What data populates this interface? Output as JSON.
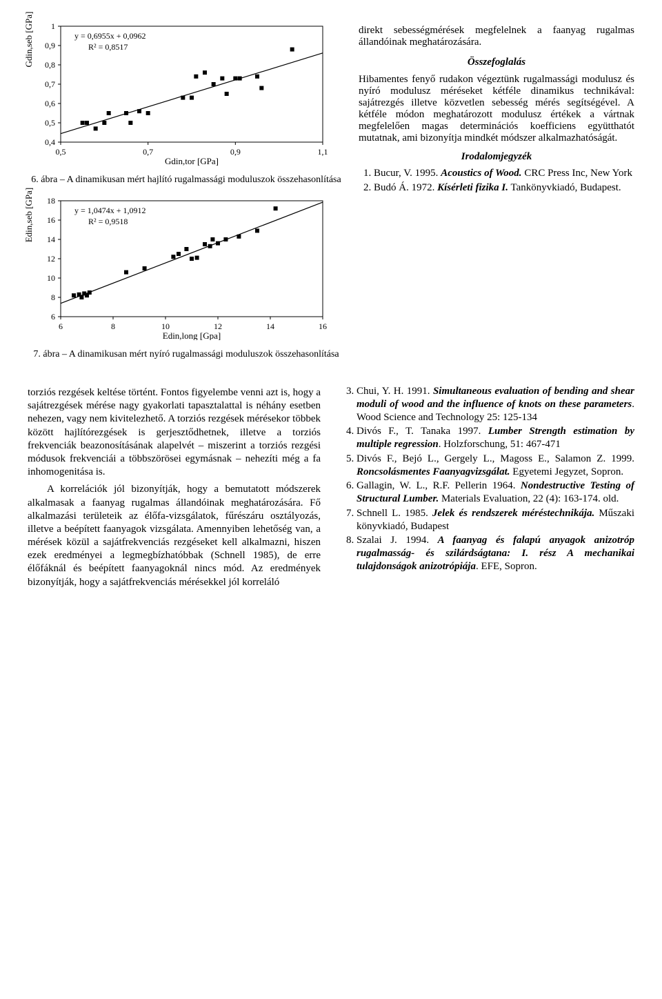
{
  "chart1": {
    "type": "scatter",
    "equation": "y = 0,6955x + 0,0962",
    "r2": "R² = 0,8517",
    "xlabel": "Gdin,tor [GPa]",
    "ylabel": "Gdin,seb [GPa]",
    "caption": "6. ábra – A dinamikusan mért hajlító rugalmassági moduluszok összehasonlítása",
    "xlim": [
      0.5,
      1.1
    ],
    "ylim": [
      0.4,
      1.0
    ],
    "xtick_step": 0.2,
    "ytick_step": 0.1,
    "xticks": [
      "0,5",
      "0,7",
      "0,9",
      "1,1"
    ],
    "yticks": [
      "0,4",
      "0,5",
      "0,6",
      "0,7",
      "0,8",
      "0,9",
      "1"
    ],
    "point_color": "#000000",
    "marker_size": 6,
    "line_color": "#000000",
    "line_width": 1.2,
    "background_color": "#ffffff",
    "border_color": "#000000",
    "font_size_ticks": 12,
    "font_size_labels": 13,
    "slope": 0.6955,
    "intercept": 0.0962,
    "points": [
      [
        0.55,
        0.5
      ],
      [
        0.56,
        0.5
      ],
      [
        0.58,
        0.47
      ],
      [
        0.6,
        0.5
      ],
      [
        0.61,
        0.55
      ],
      [
        0.65,
        0.55
      ],
      [
        0.66,
        0.5
      ],
      [
        0.68,
        0.56
      ],
      [
        0.7,
        0.55
      ],
      [
        0.78,
        0.63
      ],
      [
        0.8,
        0.63
      ],
      [
        0.81,
        0.74
      ],
      [
        0.83,
        0.76
      ],
      [
        0.85,
        0.7
      ],
      [
        0.87,
        0.73
      ],
      [
        0.88,
        0.65
      ],
      [
        0.9,
        0.73
      ],
      [
        0.91,
        0.73
      ],
      [
        0.95,
        0.74
      ],
      [
        0.96,
        0.68
      ],
      [
        1.03,
        0.88
      ]
    ]
  },
  "chart2": {
    "type": "scatter",
    "equation": "y = 1,0474x + 1,0912",
    "r2": "R² = 0,9518",
    "xlabel": "Edin,long [Gpa]",
    "ylabel": "Edin,seb [GPa]",
    "caption": "7. ábra – A dinamikusan mért nyíró rugalmassági moduluszok összehasonlítása",
    "xlim": [
      6,
      16
    ],
    "ylim": [
      6,
      18
    ],
    "xtick_step": 2,
    "ytick_step": 2,
    "xticks": [
      "6",
      "8",
      "10",
      "12",
      "14",
      "16"
    ],
    "yticks": [
      "6",
      "8",
      "10",
      "12",
      "14",
      "16",
      "18"
    ],
    "point_color": "#000000",
    "marker_size": 6,
    "line_color": "#000000",
    "line_width": 1.2,
    "background_color": "#ffffff",
    "border_color": "#000000",
    "font_size_ticks": 12,
    "font_size_labels": 13,
    "slope": 1.0474,
    "intercept": 1.0912,
    "points": [
      [
        6.5,
        8.2
      ],
      [
        6.7,
        8.3
      ],
      [
        6.8,
        8.0
      ],
      [
        6.9,
        8.4
      ],
      [
        7.0,
        8.2
      ],
      [
        7.1,
        8.5
      ],
      [
        8.5,
        10.6
      ],
      [
        9.2,
        11.0
      ],
      [
        10.3,
        12.2
      ],
      [
        10.5,
        12.5
      ],
      [
        10.8,
        13.0
      ],
      [
        11.0,
        12.0
      ],
      [
        11.2,
        12.1
      ],
      [
        11.5,
        13.5
      ],
      [
        11.7,
        13.3
      ],
      [
        11.8,
        14.0
      ],
      [
        12.0,
        13.6
      ],
      [
        12.3,
        14.0
      ],
      [
        12.8,
        14.3
      ],
      [
        13.5,
        14.9
      ],
      [
        14.2,
        17.2
      ]
    ]
  },
  "right_text": {
    "p1": "direkt sebességmérések megfelelnek a faanyag rugalmas állandóinak meghatározására.",
    "section": "Összefoglalás",
    "p2": "Hibamentes fenyő rudakon végeztünk rugalmassági modulusz és nyíró modulusz méréseket kétféle dinamikus technikával: sajátrezgés illetve közvetlen sebesség mérés segítségével. A kétféle módon meghatározott modulusz értékek a vártnak megfelelően magas determinációs koefficiens együtthatót mutatnak, ami bizonyítja mindkét módszer alkalmazhatóságát.",
    "ref_title": "Irodalomjegyzék"
  },
  "refs_right": [
    {
      "n": "1",
      "pre": "Bucur, V. 1995. ",
      "title": "Acoustics of Wood.",
      "post": " CRC Press Inc, New York"
    },
    {
      "n": "2",
      "pre": "Budó Á. 1972. ",
      "title": "Kísérleti fizika I.",
      "post": " Tankönyvkiadó, Budapest."
    }
  ],
  "bottom_left": "torziós rezgések keltése történt. Fontos figyelembe venni azt is, hogy a sajátrezgések mérése nagy gyakorlati tapasztalattal is néhány esetben nehezen, vagy nem kivitelezhető. A torziós rezgések mérésekor többek között hajlítórezgések is gerjesztődhetnek, illetve a torziós frekvenciák beazonosításának alapelvét – miszerint a torziós rezgési módusok frekvenciái a többszörösei egymásnak – nehezíti még a fa inhomogenitása is.",
  "bottom_left2": "A korrelációk jól bizonyítják, hogy a bemutatott módszerek alkalmasak a faanyag rugalmas állandóinak meghatározására. Fő alkalmazási területeik az élőfa-vizsgálatok, fűrészáru osztályozás, illetve a beépített faanyagok vizsgálata. Amennyiben lehetőség van, a mérések közül a sajátfrekvenciás rezgéseket kell alkalmazni, hiszen ezek eredményei a legmegbízhatóbbak (Schnell 1985), de erre élőfáknál és beépített faanyagoknál nincs mód. Az eredmények bizonyítják, hogy a sajátfrekvenciás mérésekkel jól korreláló",
  "refs_bottom": [
    {
      "n": "3",
      "pre": "Chui, Y. H. 1991. ",
      "title": "Simultaneous evaluation of bending and shear moduli of wood and the influence of knots on these parameters",
      "post": ". Wood Science and Technology 25: 125-134"
    },
    {
      "n": "4",
      "pre": "Divós F., T. Tanaka 1997. ",
      "title": "Lumber Strength estimation by multiple regression",
      "post": ". Holzforschung, 51: 467-471"
    },
    {
      "n": "5",
      "pre": "Divós F., Bejó L., Gergely L., Magoss E., Salamon Z. 1999. ",
      "title": "Roncsolásmentes Faanyagvizsgálat.",
      "post": " Egyetemi Jegyzet, Sopron."
    },
    {
      "n": "6",
      "pre": "Gallagin, W. L., R.F. Pellerin 1964. ",
      "title": "Nondestructive Testing of Structural Lumber.",
      "post": " Materials Evaluation, 22 (4): 163-174. old."
    },
    {
      "n": "7",
      "pre": "Schnell L. 1985. ",
      "title": "Jelek és rendszerek méréstechnikája.",
      "post": " Műszaki könyvkiadó, Budapest"
    },
    {
      "n": "8",
      "pre": "Szalai J. 1994. ",
      "title": "A faanyag és falapú anyagok anizotróp rugalmasság- és szilárdságtana: I. rész A mechanikai tulajdonságok anizotrópiája",
      "post": ". EFE, Sopron."
    }
  ]
}
